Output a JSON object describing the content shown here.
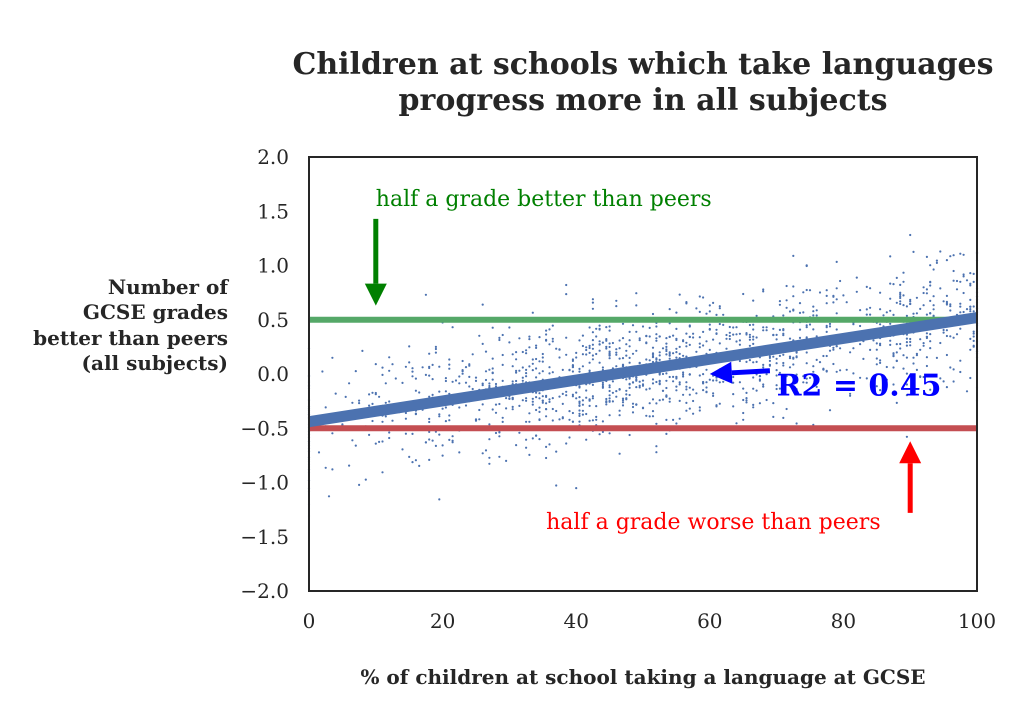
{
  "chart_data": {
    "type": "scatter",
    "title": [
      "Children at schools which take languages",
      "progress more in all subjects"
    ],
    "xlabel": "% of children at school taking a language at GCSE",
    "ylabel": [
      "Number of",
      "GCSE grades",
      "better than peers",
      "(all subjects)"
    ],
    "xlim": [
      0,
      100
    ],
    "ylim": [
      -2.0,
      2.0
    ],
    "x_ticks": [
      0,
      20,
      40,
      60,
      80,
      100
    ],
    "x_tick_labels": [
      "0",
      "20",
      "40",
      "60",
      "80",
      "100"
    ],
    "y_ticks": [
      2.0,
      1.5,
      1.0,
      0.5,
      0.0,
      -0.5,
      -1.0,
      -1.5,
      -2.0
    ],
    "y_tick_labels": [
      "2.0",
      "1.5",
      "1.0",
      "0.5",
      "0.0",
      "−0.5",
      "−1.0",
      "−1.5",
      "−2.0"
    ],
    "grid": false,
    "scatter_color": "#4c72b0",
    "regression": {
      "x": [
        0,
        100
      ],
      "y": [
        -0.44,
        0.52
      ],
      "color": "#4c72b0"
    },
    "hlines": [
      {
        "y": 0.5,
        "color": "#55a868"
      },
      {
        "y": -0.5,
        "color": "#c44e52"
      }
    ],
    "annotations": [
      {
        "text": "half a grade better than peers",
        "x": 10,
        "y": 1.55,
        "color": "#008000",
        "arrow": {
          "from": [
            10,
            1.43
          ],
          "to": [
            10,
            0.63
          ]
        }
      },
      {
        "text": "half a grade worse than peers",
        "x": 35.5,
        "y": -1.43,
        "color": "#ff0000",
        "arrow": {
          "from": [
            90,
            -1.28
          ],
          "to": [
            90,
            -0.62
          ]
        }
      },
      {
        "text": "R2 = 0.45",
        "x": 70,
        "y": -0.2,
        "color": "#0000ff",
        "bold": true,
        "arrow": {
          "from": [
            69,
            0.03
          ],
          "to": [
            60,
            0.0
          ]
        }
      }
    ],
    "scatter_summary": {
      "n_points": 1500,
      "trend_slope_per_percent": 0.0096,
      "trend_intercept": -0.44,
      "residual_spread": 0.3
    }
  }
}
